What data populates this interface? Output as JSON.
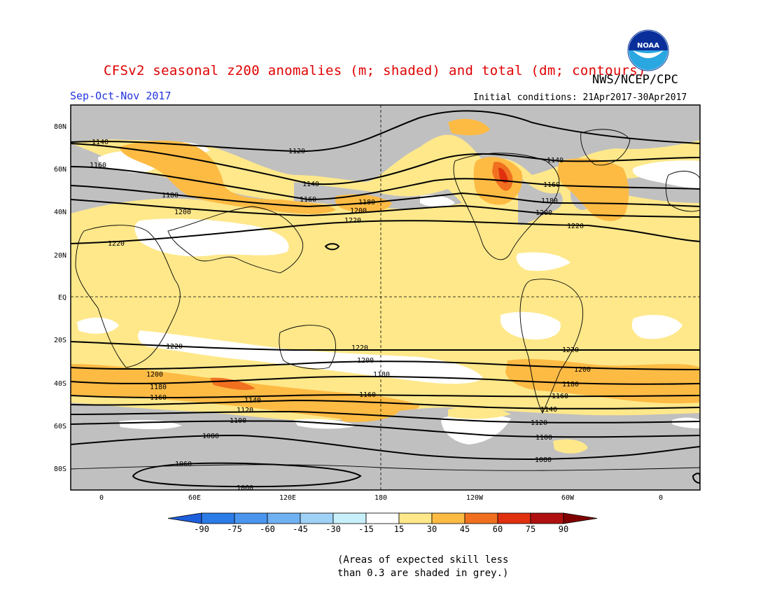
{
  "header": {
    "title": "CFSv2 seasonal z200 anomalies (m; shaded) and total (dm; contours)",
    "agency": "NWS/NCEP/CPC",
    "season": "Sep-Oct-Nov 2017",
    "initial_conditions": "Initial conditions: 21Apr2017-30Apr2017",
    "logo_text": "NOAA"
  },
  "map": {
    "lat_labels": [
      "80N",
      "60N",
      "40N",
      "20N",
      "EQ",
      "20S",
      "40S",
      "60S",
      "80S"
    ],
    "lon_labels": [
      "0",
      "60E",
      "120E",
      "180",
      "120W",
      "60W",
      "0"
    ],
    "colors": {
      "background": "#c0c0c0",
      "white": "#ffffff",
      "light_yellow": "#fee88a",
      "orange": "#fdbb44",
      "dark_orange": "#f07020",
      "red": "#e03010"
    },
    "contours": [
      {
        "label": "1140",
        "positions": [
          [
            143,
            203
          ],
          [
            793,
            229
          ]
        ]
      },
      {
        "label": "1120",
        "positions": [
          [
            424,
            216
          ]
        ]
      },
      {
        "label": "1160",
        "positions": [
          [
            140,
            236
          ],
          [
            440,
            285
          ],
          [
            788,
            264
          ]
        ]
      },
      {
        "label": "1140",
        "positions": [
          [
            444,
            263
          ]
        ]
      },
      {
        "label": "1180",
        "positions": [
          [
            243,
            279
          ],
          [
            524,
            289
          ],
          [
            785,
            287
          ]
        ]
      },
      {
        "label": "1200",
        "positions": [
          [
            261,
            303
          ],
          [
            512,
            301
          ],
          [
            777,
            304
          ]
        ]
      },
      {
        "label": "1220",
        "positions": [
          [
            166,
            348
          ],
          [
            504,
            315
          ],
          [
            822,
            323
          ]
        ]
      },
      {
        "label": "1220",
        "positions": [
          [
            249,
            495
          ],
          [
            514,
            497
          ],
          [
            815,
            500
          ]
        ]
      },
      {
        "label": "1200",
        "positions": [
          [
            522,
            515
          ],
          [
            832,
            528
          ]
        ]
      },
      {
        "label": "1200",
        "positions": [
          [
            221,
            535
          ]
        ]
      },
      {
        "label": "1180",
        "positions": [
          [
            226,
            553
          ],
          [
            545,
            535
          ],
          [
            815,
            549
          ]
        ]
      },
      {
        "label": "1160",
        "positions": [
          [
            226,
            568
          ],
          [
            525,
            564
          ],
          [
            800,
            566
          ]
        ]
      },
      {
        "label": "1140",
        "positions": [
          [
            361,
            572
          ],
          [
            784,
            585
          ]
        ]
      },
      {
        "label": "1120",
        "positions": [
          [
            350,
            586
          ],
          [
            770,
            604
          ]
        ]
      },
      {
        "label": "1100",
        "positions": [
          [
            340,
            601
          ],
          [
            777,
            625
          ]
        ]
      },
      {
        "label": "1080",
        "positions": [
          [
            301,
            623
          ],
          [
            776,
            657
          ]
        ]
      },
      {
        "label": "1060",
        "positions": [
          [
            262,
            663
          ],
          [
            350,
            697
          ]
        ]
      }
    ]
  },
  "colorbar": {
    "ticks": [
      "-90",
      "-75",
      "-60",
      "-45",
      "-30",
      "-15",
      "15",
      "30",
      "45",
      "60",
      "75",
      "90"
    ],
    "colors": [
      "#1e5fdc",
      "#2c7ce8",
      "#4a96ee",
      "#6fb1f2",
      "#9fd2f6",
      "#c8f0fa",
      "#ffffff",
      "#fee88a",
      "#fdbb44",
      "#f07020",
      "#e03010",
      "#b01010",
      "#800000"
    ]
  },
  "footnote": {
    "line1": "(Areas of expected skill less",
    "line2": "than 0.3 are shaded in grey.)"
  }
}
